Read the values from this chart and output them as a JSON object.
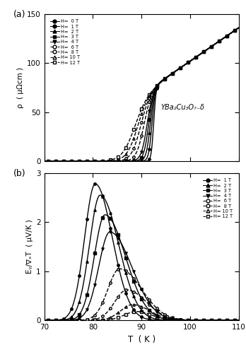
{
  "panel_a": {
    "title": "(a)",
    "ylabel": "ρ  ( μΩcm )",
    "ylim": [
      0,
      150
    ],
    "yticks": [
      0,
      50,
      100,
      150
    ],
    "xlim": [
      70,
      110
    ],
    "xticks": [
      70,
      80,
      90,
      100,
      110
    ],
    "annotation": "YBa₂Cu₃O₇₋δ",
    "fields": [
      0,
      1,
      2,
      3,
      4,
      6,
      8,
      10,
      12
    ],
    "Tc_base": 92.5,
    "rho_slope": 3.4,
    "rho_intercept": -238.0,
    "legend_entries": [
      {
        "label": "H=  0 T",
        "marker": "o",
        "filled": true
      },
      {
        "label": "H=  1 T",
        "marker": "o",
        "filled": true,
        "small": true
      },
      {
        "label": "H=  2 T",
        "marker": "^",
        "filled": true
      },
      {
        "label": "H=  3 T",
        "marker": "s",
        "filled": true
      },
      {
        "label": "H=  4 T",
        "marker": "v",
        "filled": true
      },
      {
        "label": "H=  6 T",
        "marker": "o",
        "filled": false
      },
      {
        "label": "H=  8 T",
        "marker": "o",
        "filled": false,
        "small": true
      },
      {
        "label": "H= 10 T",
        "marker": "^",
        "filled": false
      },
      {
        "label": "H= 12 T",
        "marker": "s",
        "filled": false
      }
    ]
  },
  "panel_b": {
    "title": "(b)",
    "ylabel": "Eᵧ/∇ₓT  ( μV/K )",
    "xlabel": "T  ( K )",
    "ylim": [
      0,
      3
    ],
    "yticks": [
      0,
      1,
      2,
      3
    ],
    "xlim": [
      70,
      110
    ],
    "xticks": [
      70,
      80,
      90,
      100,
      110
    ],
    "fields": [
      1,
      2,
      3,
      4,
      6,
      8,
      10,
      12
    ],
    "peak_amps": [
      2.78,
      2.55,
      2.15,
      1.8,
      1.05,
      0.62,
      0.32,
      0.18
    ],
    "peak_centers": [
      80.5,
      81.5,
      82.5,
      83.5,
      85.5,
      87.0,
      88.2,
      89.0
    ],
    "width_left": [
      2.2,
      2.2,
      2.2,
      2.3,
      2.4,
      2.5,
      2.5,
      2.5
    ],
    "width_right": [
      3.5,
      3.8,
      4.2,
      4.5,
      4.5,
      4.0,
      3.5,
      3.0
    ],
    "legend_entries": [
      {
        "label": "H=  1 T",
        "marker": "o",
        "filled": true
      },
      {
        "label": "H=  2 T",
        "marker": "^",
        "filled": true
      },
      {
        "label": "H=  3 T",
        "marker": "s",
        "filled": true
      },
      {
        "label": "H=  4 T",
        "marker": "v",
        "filled": true
      },
      {
        "label": "H=  6 T",
        "marker": "o",
        "filled": false
      },
      {
        "label": "H=  8 T",
        "marker": "o",
        "filled": false,
        "small": true
      },
      {
        "label": "H= 10 T",
        "marker": "^",
        "filled": false
      },
      {
        "label": "H= 12 T",
        "marker": "s",
        "filled": false
      }
    ]
  }
}
